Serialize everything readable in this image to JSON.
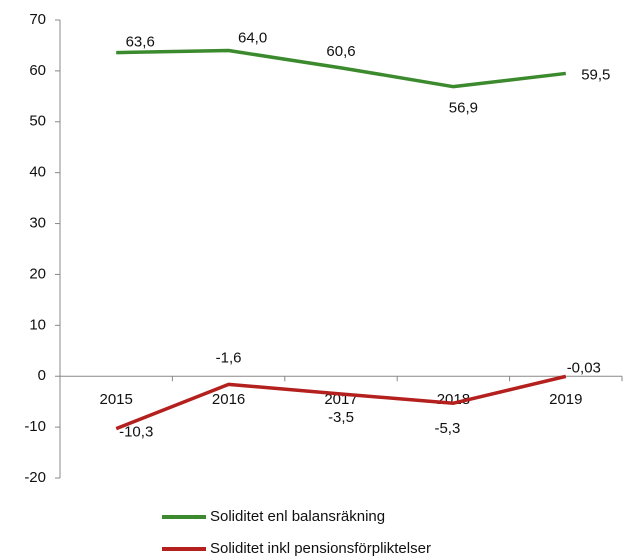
{
  "chart_data": {
    "type": "line",
    "categories": [
      "2015",
      "2016",
      "2017",
      "2018",
      "2019"
    ],
    "series": [
      {
        "name": "Soliditet enl balansräkning",
        "color": "#3c8a2e",
        "values": [
          63.6,
          64.0,
          60.6,
          56.9,
          59.5
        ],
        "value_labels": [
          "63,6",
          "64,0",
          "60,6",
          "56,9",
          "59,5"
        ]
      },
      {
        "name": "Soliditet inkl pensionsförpliktelser",
        "color": "#b3201e",
        "values": [
          -10.3,
          -1.6,
          -3.5,
          -5.3,
          -0.03
        ],
        "value_labels": [
          "-10,3",
          "-1,6",
          "-3,5",
          "-5,3",
          "-0,03"
        ]
      }
    ],
    "ylim": [
      -20,
      70
    ],
    "yticks": [
      -20,
      -10,
      0,
      10,
      20,
      30,
      40,
      50,
      60,
      70
    ],
    "grid": false,
    "legend": "bottom"
  }
}
